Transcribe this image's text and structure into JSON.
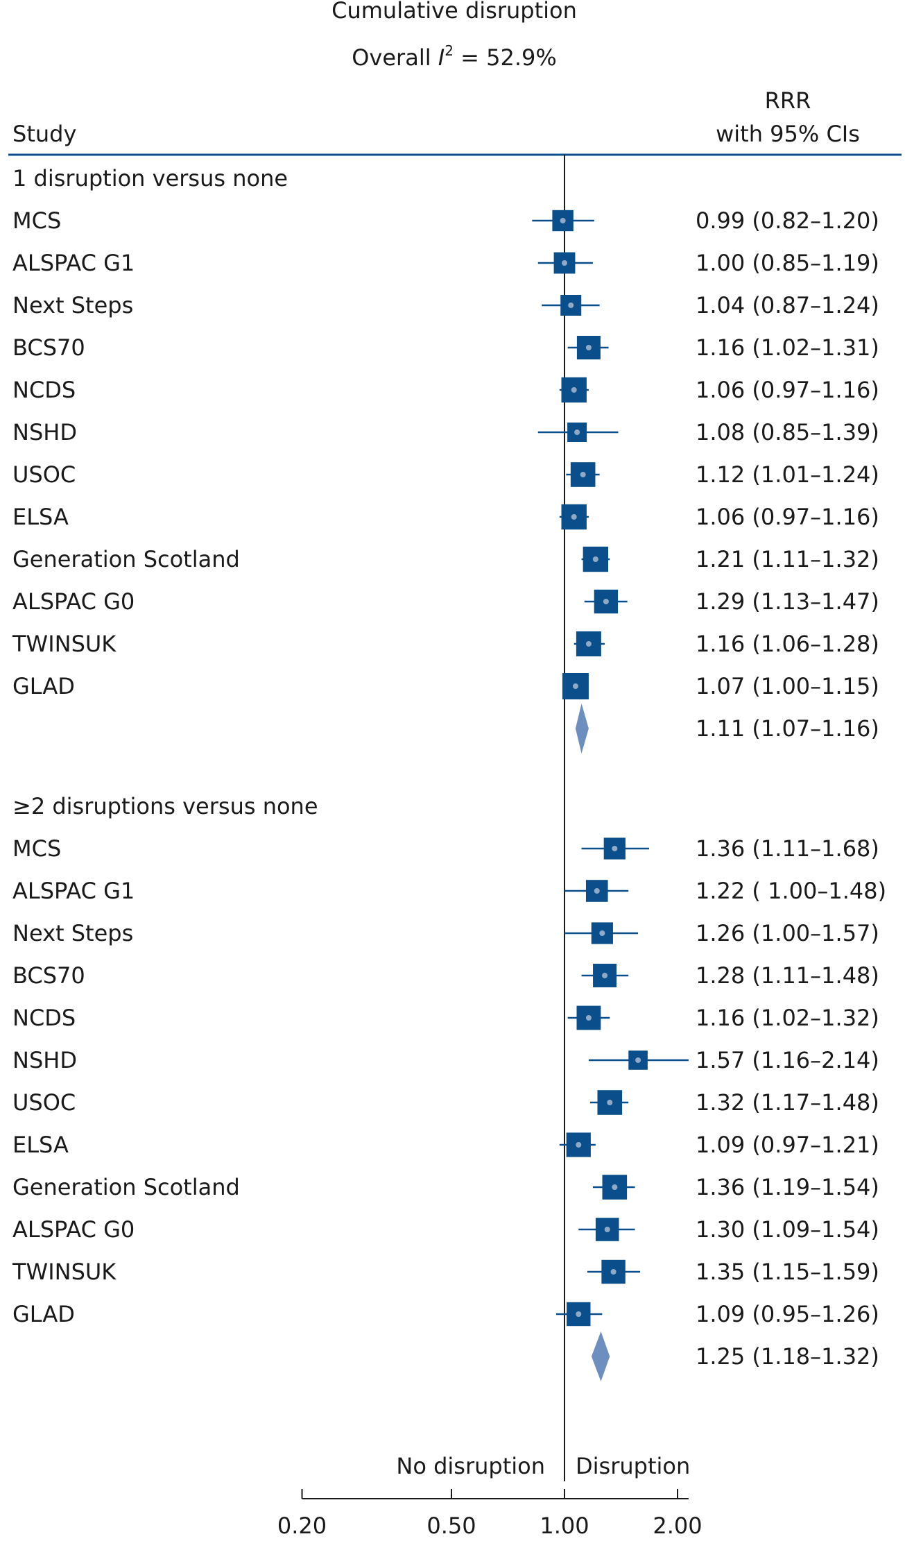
{
  "chart_data": {
    "type": "forest",
    "title": "Cumulative disruption",
    "subtitle_prefix": "Overall ",
    "subtitle_italic": "I",
    "subtitle_sup": "2",
    "subtitle_suffix": " = 52.9%",
    "column_headers": {
      "study": "Study",
      "estimate_line1": "RRR",
      "estimate_line2": "with 95% CIs"
    },
    "x_axis": {
      "scale": "log",
      "reference": 1.0,
      "range": [
        0.2,
        2.14
      ],
      "ticks": [
        0.2,
        0.5,
        1.0,
        2.0
      ],
      "tick_labels": [
        "0.20",
        "0.50",
        "1.00",
        "2.00"
      ],
      "left_label": "No disruption",
      "right_label": "Disruption"
    },
    "colors": {
      "marker": "#0a4f8c",
      "ci_line": "#0a4f8c",
      "marker_dot": "#8fa9c7",
      "diamond": "#6d8fc0",
      "rule": "#0a4f8c",
      "axis": "#1a1a1a"
    },
    "groups": [
      {
        "label": "1 disruption versus none",
        "studies": [
          {
            "name": "MCS",
            "rrr": 0.99,
            "lo": 0.82,
            "hi": 1.2,
            "text": "0.99 (0.82–1.20)",
            "weight": 0.62
          },
          {
            "name": "ALSPAC G1",
            "rrr": 1.0,
            "lo": 0.85,
            "hi": 1.19,
            "text": "1.00 (0.85–1.19)",
            "weight": 0.64
          },
          {
            "name": "Next Steps",
            "rrr": 1.04,
            "lo": 0.87,
            "hi": 1.24,
            "text": "1.04 (0.87–1.24)",
            "weight": 0.6
          },
          {
            "name": "BCS70",
            "rrr": 1.16,
            "lo": 1.02,
            "hi": 1.31,
            "text": "1.16 (1.02–1.31)",
            "weight": 0.8
          },
          {
            "name": "NCDS",
            "rrr": 1.06,
            "lo": 0.97,
            "hi": 1.16,
            "text": "1.06 (0.97–1.16)",
            "weight": 0.92
          },
          {
            "name": "NSHD",
            "rrr": 1.08,
            "lo": 0.85,
            "hi": 1.39,
            "text": "1.08 (0.85–1.39)",
            "weight": 0.5
          },
          {
            "name": "USOC",
            "rrr": 1.12,
            "lo": 1.01,
            "hi": 1.24,
            "text": "1.12 (1.01–1.24)",
            "weight": 0.88
          },
          {
            "name": "ELSA",
            "rrr": 1.06,
            "lo": 0.97,
            "hi": 1.16,
            "text": "1.06 (0.97–1.16)",
            "weight": 0.92
          },
          {
            "name": "Generation Scotland",
            "rrr": 1.21,
            "lo": 1.11,
            "hi": 1.32,
            "text": "1.21 (1.11–1.32)",
            "weight": 0.92
          },
          {
            "name": "ALSPAC G0",
            "rrr": 1.29,
            "lo": 1.13,
            "hi": 1.47,
            "text": "1.29 (1.13–1.47)",
            "weight": 0.82
          },
          {
            "name": "TWINSUK",
            "rrr": 1.16,
            "lo": 1.06,
            "hi": 1.28,
            "text": "1.16 (1.06–1.28)",
            "weight": 0.9
          },
          {
            "name": "GLAD",
            "rrr": 1.07,
            "lo": 1.0,
            "hi": 1.15,
            "text": "1.07 (1.00–1.15)",
            "weight": 1.0
          }
        ],
        "pooled": {
          "rrr": 1.11,
          "lo": 1.07,
          "hi": 1.16,
          "text": "1.11 (1.07–1.16)"
        }
      },
      {
        "label": "≥2 disruptions versus none",
        "studies": [
          {
            "name": "MCS",
            "rrr": 1.36,
            "lo": 1.11,
            "hi": 1.68,
            "text": "1.36 (1.11–1.68)",
            "weight": 0.66
          },
          {
            "name": "ALSPAC G1",
            "rrr": 1.22,
            "lo": 1.0,
            "hi": 1.48,
            "text": "1.22 ( 1.00–1.48)",
            "weight": 0.68
          },
          {
            "name": "Next Steps",
            "rrr": 1.26,
            "lo": 1.0,
            "hi": 1.57,
            "text": "1.26 (1.00–1.57)",
            "weight": 0.66
          },
          {
            "name": "BCS70",
            "rrr": 1.28,
            "lo": 1.11,
            "hi": 1.48,
            "text": "1.28 (1.11–1.48)",
            "weight": 0.8
          },
          {
            "name": "NCDS",
            "rrr": 1.16,
            "lo": 1.02,
            "hi": 1.32,
            "text": "1.16 (1.02–1.32)",
            "weight": 0.84
          },
          {
            "name": "NSHD",
            "rrr": 1.57,
            "lo": 1.16,
            "hi": 2.14,
            "text": "1.57 (1.16–2.14)",
            "weight": 0.48
          },
          {
            "name": "USOC",
            "rrr": 1.32,
            "lo": 1.17,
            "hi": 1.48,
            "text": "1.32 (1.17–1.48)",
            "weight": 0.88
          },
          {
            "name": "ELSA",
            "rrr": 1.09,
            "lo": 0.97,
            "hi": 1.21,
            "text": "1.09 (0.97–1.21)",
            "weight": 0.86
          },
          {
            "name": "Generation Scotland",
            "rrr": 1.36,
            "lo": 1.19,
            "hi": 1.54,
            "text": "1.36 (1.19–1.54)",
            "weight": 0.88
          },
          {
            "name": "ALSPAC G0",
            "rrr": 1.3,
            "lo": 1.09,
            "hi": 1.54,
            "text": "1.30 (1.09–1.54)",
            "weight": 0.78
          },
          {
            "name": "TWINSUK",
            "rrr": 1.35,
            "lo": 1.15,
            "hi": 1.59,
            "text": "1.35 (1.15–1.59)",
            "weight": 0.82
          },
          {
            "name": "GLAD",
            "rrr": 1.09,
            "lo": 0.95,
            "hi": 1.26,
            "text": "1.09 (0.95–1.26)",
            "weight": 0.82
          }
        ],
        "pooled": {
          "rrr": 1.25,
          "lo": 1.18,
          "hi": 1.32,
          "text": "1.25 (1.18–1.32)"
        }
      }
    ]
  }
}
